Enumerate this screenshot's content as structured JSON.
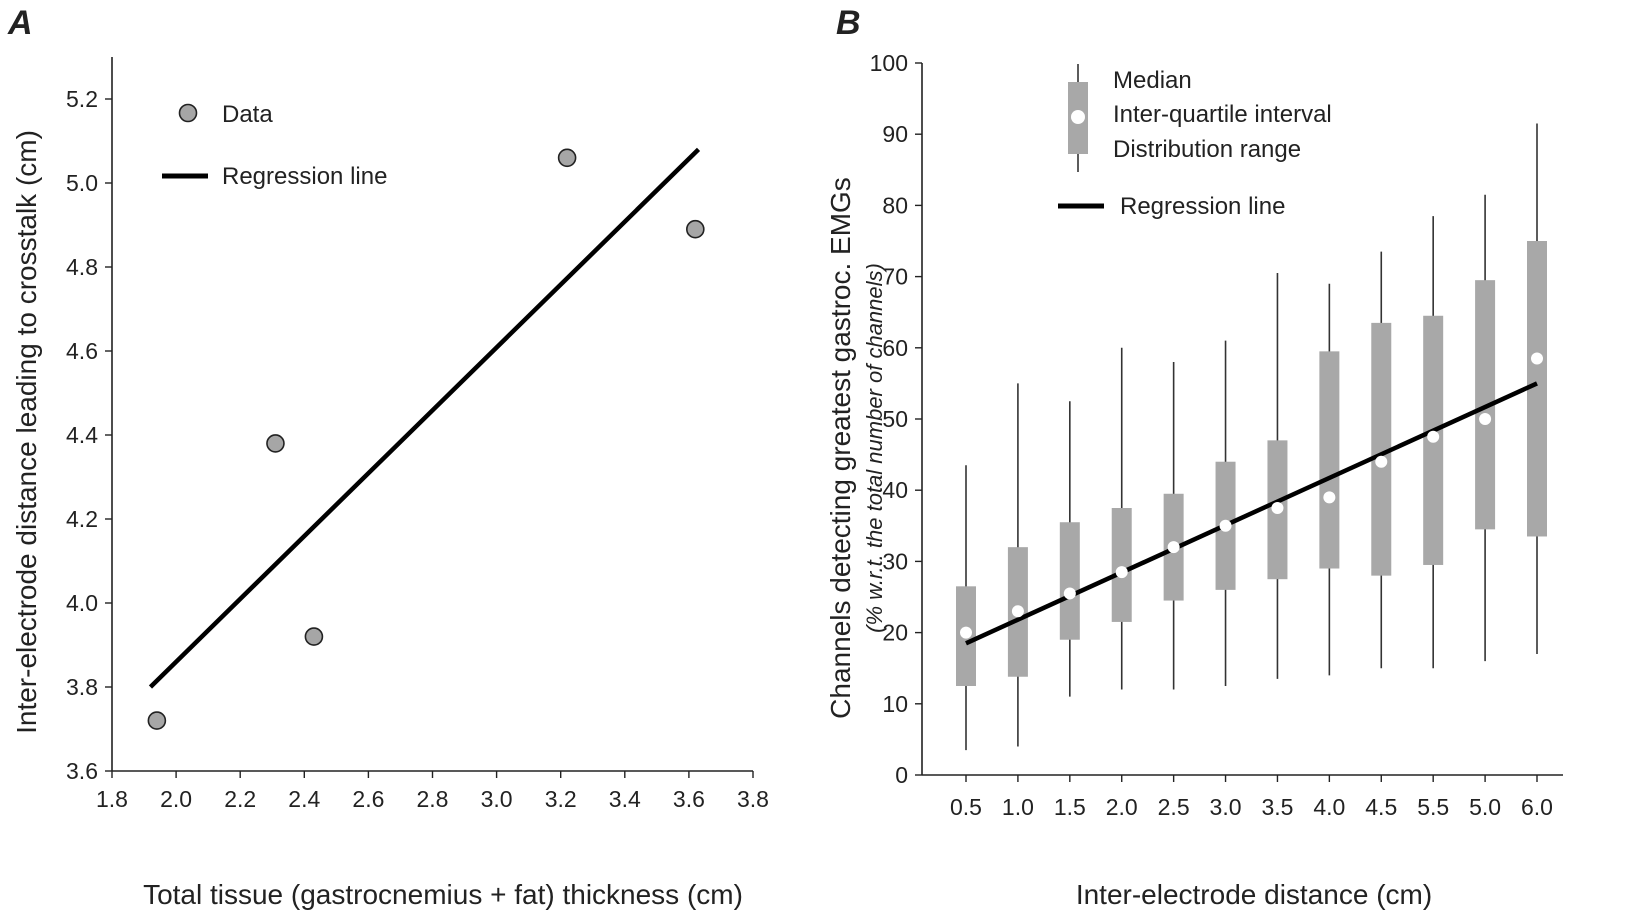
{
  "chart_data": [
    {
      "panel": "A",
      "type": "scatter",
      "title": "",
      "xlabel": "Total tissue (gastrocnemius + fat) thickness (cm)",
      "ylabel": "Inter-electrode distance leading to crosstalk (cm)",
      "xlim": [
        1.8,
        3.8
      ],
      "ylim": [
        3.6,
        5.3
      ],
      "xticks": [
        "1.8",
        "2.0",
        "2.2",
        "2.4",
        "2.6",
        "2.8",
        "3.0",
        "3.2",
        "3.4",
        "3.6",
        "3.8"
      ],
      "yticks": [
        "3.6",
        "3.8",
        "4.0",
        "4.2",
        "4.4",
        "4.6",
        "4.8",
        "5.0",
        "5.2"
      ],
      "points": [
        {
          "x": 1.94,
          "y": 3.72
        },
        {
          "x": 2.31,
          "y": 4.38
        },
        {
          "x": 2.43,
          "y": 3.92
        },
        {
          "x": 3.22,
          "y": 5.06
        },
        {
          "x": 3.62,
          "y": 4.89
        }
      ],
      "regression": {
        "x": [
          1.92,
          3.63
        ],
        "y": [
          3.8,
          5.08
        ]
      },
      "legend": {
        "data_label": "Data",
        "regression_label": "Regression line",
        "position": "top-left"
      }
    },
    {
      "panel": "B",
      "type": "box",
      "title": "",
      "xlabel": "Inter-electrode distance (cm)",
      "ylabel": "Channels detecting greatest gastroc. EMGs",
      "ylabel_sub": "(% w.r.t. the total number of channels)",
      "ylim": [
        0,
        100
      ],
      "yticks": [
        "0",
        "10",
        "20",
        "30",
        "40",
        "50",
        "60",
        "70",
        "80",
        "90",
        "100"
      ],
      "categories": [
        "0.5",
        "1.0",
        "1.5",
        "2.0",
        "2.5",
        "3.0",
        "3.5",
        "4.0",
        "4.5",
        "5.5",
        "5.0",
        "6.0"
      ],
      "boxes": [
        {
          "min": 3.5,
          "q1": 12.5,
          "median": 20.0,
          "q3": 26.5,
          "max": 43.5
        },
        {
          "min": 4.0,
          "q1": 13.8,
          "median": 23.0,
          "q3": 32.0,
          "max": 55.0
        },
        {
          "min": 11.0,
          "q1": 19.0,
          "median": 25.5,
          "q3": 35.5,
          "max": 52.5
        },
        {
          "min": 12.0,
          "q1": 21.5,
          "median": 28.5,
          "q3": 37.5,
          "max": 60.0
        },
        {
          "min": 12.0,
          "q1": 24.5,
          "median": 32.0,
          "q3": 39.5,
          "max": 58.0
        },
        {
          "min": 12.5,
          "q1": 26.0,
          "median": 35.0,
          "q3": 44.0,
          "max": 61.0
        },
        {
          "min": 13.5,
          "q1": 27.5,
          "median": 37.5,
          "q3": 47.0,
          "max": 70.5
        },
        {
          "min": 14.0,
          "q1": 29.0,
          "median": 39.0,
          "q3": 59.5,
          "max": 69.0
        },
        {
          "min": 15.0,
          "q1": 28.0,
          "median": 44.0,
          "q3": 63.5,
          "max": 73.5
        },
        {
          "min": 15.0,
          "q1": 29.5,
          "median": 47.5,
          "q3": 64.5,
          "max": 78.5
        },
        {
          "min": 16.0,
          "q1": 34.5,
          "median": 50.0,
          "q3": 69.5,
          "max": 81.5
        },
        {
          "min": 17.0,
          "q1": 33.5,
          "median": 58.5,
          "q3": 75.0,
          "max": 91.5
        }
      ],
      "regression": {
        "x_index": [
          0,
          11
        ],
        "y": [
          18.5,
          55.0
        ]
      },
      "legend": {
        "median_label": "Median",
        "iqr_label": "Inter-quartile interval",
        "range_label": "Distribution range",
        "regression_label": "Regression line",
        "position": "top-left"
      }
    }
  ],
  "style": {
    "axis_color": "#222222",
    "point_fill": "#a6a6a6",
    "box_fill": "#a8a8a8",
    "median_fill": "#ffffff",
    "line_color": "#000000"
  }
}
